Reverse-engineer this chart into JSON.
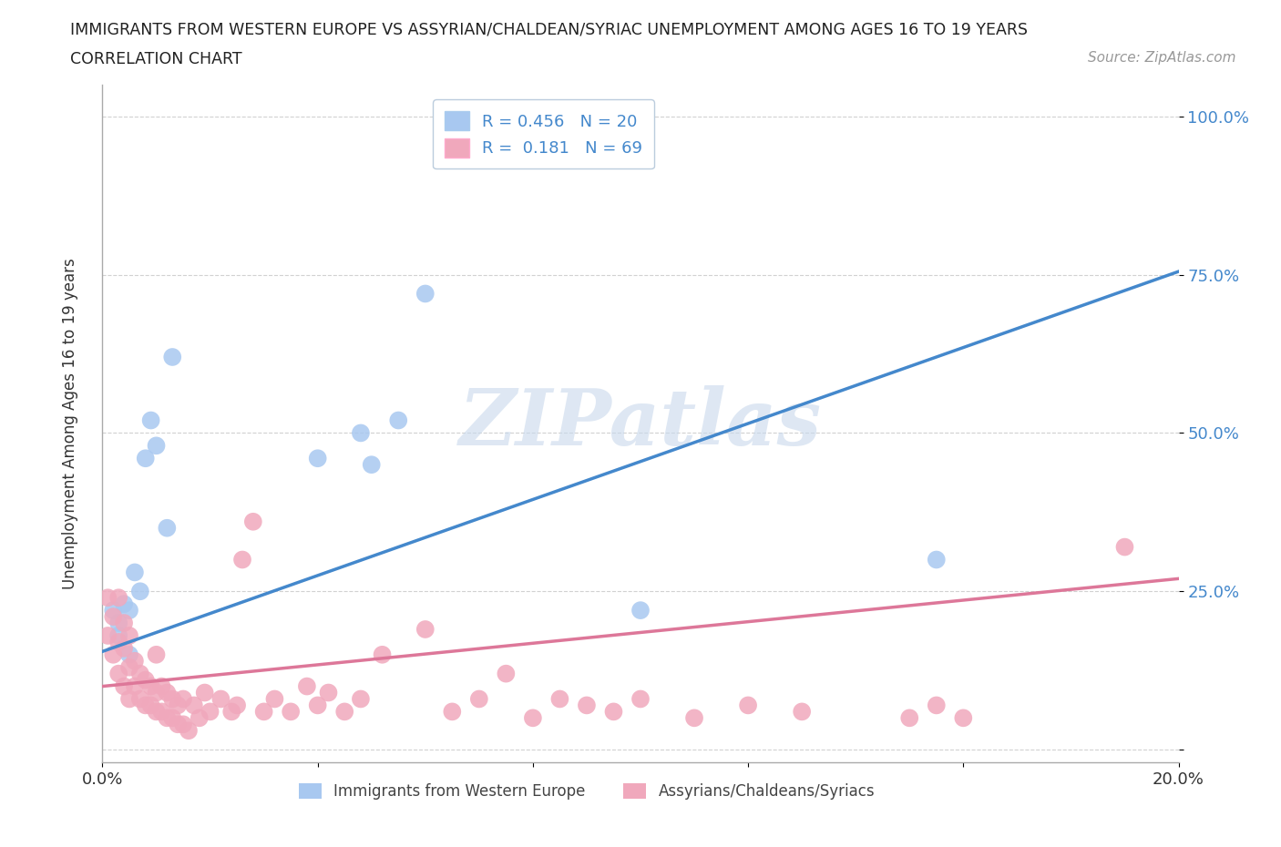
{
  "title_line1": "IMMIGRANTS FROM WESTERN EUROPE VS ASSYRIAN/CHALDEAN/SYRIAC UNEMPLOYMENT AMONG AGES 16 TO 19 YEARS",
  "title_line2": "CORRELATION CHART",
  "source": "Source: ZipAtlas.com",
  "ylabel": "Unemployment Among Ages 16 to 19 years",
  "watermark": "ZIPatlas",
  "legend_blue": "R = 0.456   N = 20",
  "legend_pink": "R =  0.181   N = 69",
  "legend_label_blue": "Immigrants from Western Europe",
  "legend_label_pink": "Assyrians/Chaldeans/Syriacs",
  "blue_color": "#A8C8F0",
  "pink_color": "#F0A8BC",
  "line_blue": "#4488CC",
  "line_pink": "#DD7799",
  "xlim": [
    0.0,
    0.2
  ],
  "ylim": [
    -0.02,
    1.05
  ],
  "xticks": [
    0.0,
    0.04,
    0.08,
    0.12,
    0.16,
    0.2
  ],
  "xtick_labels": [
    "0.0%",
    "",
    "",
    "",
    "",
    "20.0%"
  ],
  "yticks": [
    0.0,
    0.25,
    0.5,
    0.75,
    1.0
  ],
  "ytick_labels": [
    "",
    "25.0%",
    "50.0%",
    "75.0%",
    "100.0%"
  ],
  "blue_scatter_x": [
    0.002,
    0.003,
    0.003,
    0.004,
    0.005,
    0.005,
    0.006,
    0.007,
    0.008,
    0.009,
    0.01,
    0.012,
    0.013,
    0.04,
    0.048,
    0.05,
    0.055,
    0.06,
    0.1,
    0.155
  ],
  "blue_scatter_y": [
    0.22,
    0.2,
    0.18,
    0.23,
    0.15,
    0.22,
    0.28,
    0.25,
    0.46,
    0.52,
    0.48,
    0.35,
    0.62,
    0.46,
    0.5,
    0.45,
    0.52,
    0.72,
    0.22,
    0.3
  ],
  "pink_scatter_x": [
    0.001,
    0.001,
    0.002,
    0.002,
    0.003,
    0.003,
    0.003,
    0.004,
    0.004,
    0.004,
    0.005,
    0.005,
    0.005,
    0.006,
    0.006,
    0.007,
    0.007,
    0.008,
    0.008,
    0.009,
    0.009,
    0.01,
    0.01,
    0.01,
    0.011,
    0.011,
    0.012,
    0.012,
    0.013,
    0.013,
    0.014,
    0.014,
    0.015,
    0.015,
    0.016,
    0.017,
    0.018,
    0.019,
    0.02,
    0.022,
    0.024,
    0.025,
    0.026,
    0.028,
    0.03,
    0.032,
    0.035,
    0.038,
    0.04,
    0.042,
    0.045,
    0.048,
    0.052,
    0.06,
    0.065,
    0.07,
    0.075,
    0.08,
    0.085,
    0.09,
    0.095,
    0.1,
    0.11,
    0.12,
    0.13,
    0.15,
    0.155,
    0.16,
    0.19
  ],
  "pink_scatter_y": [
    0.18,
    0.24,
    0.15,
    0.21,
    0.12,
    0.17,
    0.24,
    0.1,
    0.16,
    0.2,
    0.08,
    0.13,
    0.18,
    0.1,
    0.14,
    0.08,
    0.12,
    0.07,
    0.11,
    0.07,
    0.1,
    0.06,
    0.09,
    0.15,
    0.06,
    0.1,
    0.05,
    0.09,
    0.05,
    0.08,
    0.04,
    0.07,
    0.04,
    0.08,
    0.03,
    0.07,
    0.05,
    0.09,
    0.06,
    0.08,
    0.06,
    0.07,
    0.3,
    0.36,
    0.06,
    0.08,
    0.06,
    0.1,
    0.07,
    0.09,
    0.06,
    0.08,
    0.15,
    0.19,
    0.06,
    0.08,
    0.12,
    0.05,
    0.08,
    0.07,
    0.06,
    0.08,
    0.05,
    0.07,
    0.06,
    0.05,
    0.07,
    0.05,
    0.32
  ],
  "blue_line_x0": 0.0,
  "blue_line_x1": 0.2,
  "blue_line_y0": 0.155,
  "blue_line_y1": 0.755,
  "pink_line_x0": 0.0,
  "pink_line_x1": 0.2,
  "pink_line_y0": 0.1,
  "pink_line_y1": 0.27,
  "grid_color": "#CCCCCC",
  "bg_color": "#FFFFFF",
  "title_color": "#222222",
  "tick_color_right": "#4488CC",
  "watermark_color": "#C8D8EC",
  "watermark_alpha": 0.6,
  "legend_text_color": "#4488CC"
}
